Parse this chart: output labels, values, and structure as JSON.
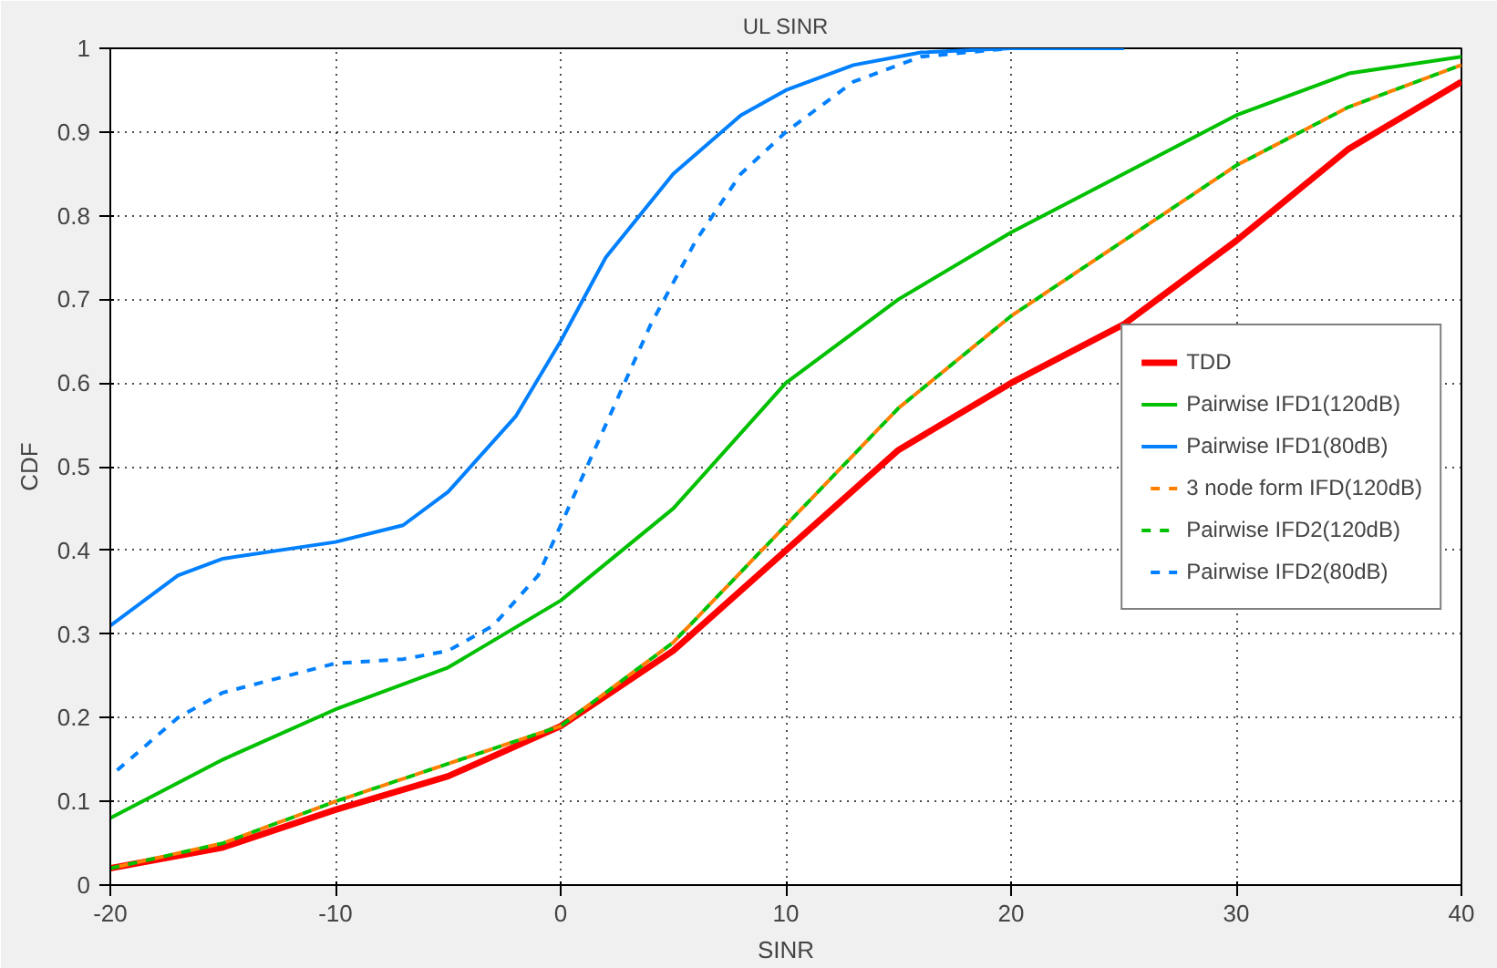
{
  "chart_data": {
    "type": "line",
    "title": "UL SINR",
    "xlabel": "SINR",
    "ylabel": "CDF",
    "xlim": [
      -20,
      40
    ],
    "xticks": [
      -20,
      -10,
      0,
      10,
      20,
      30,
      40
    ],
    "ylim": [
      0,
      1
    ],
    "yticks": [
      0,
      0.1,
      0.2,
      0.3,
      0.4,
      0.5,
      0.6,
      0.7,
      0.8,
      0.9,
      1
    ],
    "grid": true,
    "legend": "right",
    "marker": "none",
    "series": [
      {
        "name": "TDD",
        "color": "#ff0000",
        "line_style": "solid",
        "x": [
          -20,
          -15,
          -10,
          -5,
          0,
          5,
          10,
          15,
          20,
          25,
          30,
          35,
          40
        ],
        "values": [
          0.02,
          0.045,
          0.09,
          0.13,
          0.19,
          0.28,
          0.4,
          0.52,
          0.6,
          0.67,
          0.77,
          0.88,
          0.96
        ]
      },
      {
        "name": "Pairwise IFD1(120dB)",
        "color": "#00c000",
        "line_style": "solid",
        "x": [
          -20,
          -15,
          -10,
          -5,
          0,
          5,
          10,
          15,
          20,
          25,
          30,
          35,
          40
        ],
        "values": [
          0.08,
          0.15,
          0.21,
          0.26,
          0.34,
          0.45,
          0.6,
          0.7,
          0.78,
          0.85,
          0.92,
          0.97,
          0.99
        ]
      },
      {
        "name": "Pairwise IFD1(80dB)",
        "color": "#0080ff",
        "line_style": "solid",
        "x": [
          -20,
          -17,
          -15,
          -10,
          -7,
          -5,
          -2,
          0,
          2,
          5,
          8,
          10,
          13,
          16,
          20,
          25
        ],
        "values": [
          0.31,
          0.37,
          0.39,
          0.41,
          0.43,
          0.47,
          0.56,
          0.65,
          0.75,
          0.85,
          0.92,
          0.95,
          0.98,
          0.995,
          1,
          1
        ]
      },
      {
        "name": "3 node form IFD(120dB)",
        "color": "#ff8000",
        "line_style": "dashed",
        "x": [
          -20,
          -15,
          -10,
          -5,
          0,
          5,
          10,
          15,
          20,
          25,
          30,
          35,
          40
        ],
        "values": [
          0.02,
          0.05,
          0.1,
          0.145,
          0.19,
          0.29,
          0.43,
          0.57,
          0.68,
          0.77,
          0.86,
          0.93,
          0.98
        ]
      },
      {
        "name": "Pairwise IFD2(120dB)",
        "color": "#00c000",
        "line_style": "dashed",
        "x": [
          -20,
          -15,
          -10,
          -5,
          0,
          5,
          10,
          15,
          20,
          25,
          30,
          35,
          40
        ],
        "values": [
          0.02,
          0.05,
          0.1,
          0.145,
          0.19,
          0.29,
          0.43,
          0.57,
          0.68,
          0.77,
          0.86,
          0.93,
          0.98
        ]
      },
      {
        "name": "Pairwise IFD2(80dB)",
        "color": "#0080ff",
        "line_style": "dashed",
        "x": [
          -20,
          -17,
          -15,
          -10,
          -7,
          -5,
          -3,
          -1,
          0,
          2,
          4,
          6,
          8,
          10,
          13,
          16,
          20,
          25
        ],
        "values": [
          0.13,
          0.2,
          0.23,
          0.265,
          0.27,
          0.28,
          0.31,
          0.37,
          0.43,
          0.55,
          0.67,
          0.77,
          0.85,
          0.9,
          0.96,
          0.99,
          1,
          1
        ]
      }
    ]
  }
}
